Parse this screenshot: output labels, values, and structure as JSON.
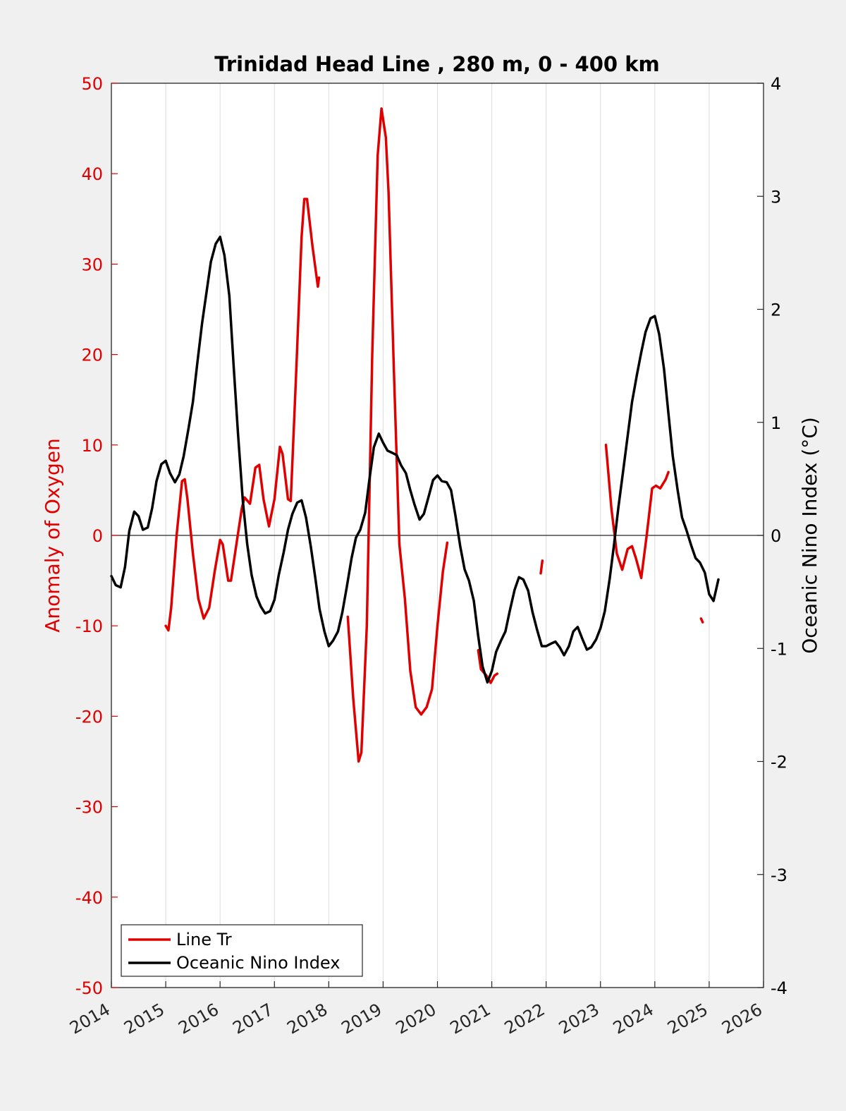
{
  "chart_data": {
    "type": "line",
    "title": "Trinidad Head Line , 280 m, 0 - 400 km",
    "xlabel": "",
    "ylabel_left": "Anomaly of Oxygen",
    "ylabel_right": "Oceanic Nino Index (°C)",
    "xlim": [
      2014,
      2026
    ],
    "ylim_left": [
      -50,
      50
    ],
    "ylim_right": [
      -4,
      4
    ],
    "x_ticks": [
      "2014",
      "2015",
      "2016",
      "2017",
      "2018",
      "2019",
      "2020",
      "2021",
      "2022",
      "2023",
      "2024",
      "2025",
      "2026"
    ],
    "y_ticks_left": [
      "50",
      "40",
      "30",
      "20",
      "10",
      "0",
      "-10",
      "-20",
      "-30",
      "-40",
      "-50"
    ],
    "y_ticks_right": [
      "4",
      "3",
      "2",
      "1",
      "0",
      "-1",
      "-2",
      "-3",
      "-4"
    ],
    "grid": "vertical",
    "legend_position": "bottom-left",
    "colors": {
      "oxygen": "#e00000",
      "oni": "#000000",
      "left_axis": "#e00000",
      "right_axis": "#000000"
    },
    "series": [
      {
        "name": "Line Tr",
        "axis": "left",
        "segments": [
          [
            [
              2015.0,
              -10.0
            ],
            [
              2015.05,
              -10.5
            ],
            [
              2015.1,
              -8
            ],
            [
              2015.2,
              0
            ],
            [
              2015.3,
              6
            ],
            [
              2015.35,
              6.2
            ],
            [
              2015.4,
              4
            ],
            [
              2015.5,
              -2
            ],
            [
              2015.6,
              -7
            ],
            [
              2015.7,
              -9.2
            ],
            [
              2015.8,
              -8
            ],
            [
              2015.9,
              -4
            ],
            [
              2016.0,
              -0.5
            ],
            [
              2016.05,
              -1
            ],
            [
              2016.15,
              -5
            ],
            [
              2016.2,
              -5
            ],
            [
              2016.3,
              -1
            ],
            [
              2016.4,
              3
            ],
            [
              2016.45,
              4.2
            ],
            [
              2016.55,
              3.5
            ],
            [
              2016.65,
              7.5
            ],
            [
              2016.72,
              7.8
            ],
            [
              2016.8,
              4
            ],
            [
              2016.9,
              1
            ],
            [
              2017.0,
              4
            ],
            [
              2017.1,
              9.8
            ],
            [
              2017.15,
              9
            ],
            [
              2017.25,
              4
            ],
            [
              2017.3,
              3.8
            ],
            [
              2017.4,
              18
            ],
            [
              2017.5,
              33
            ],
            [
              2017.55,
              37.2
            ],
            [
              2017.6,
              37.2
            ],
            [
              2017.7,
              32
            ],
            [
              2017.8,
              27.5
            ],
            [
              2017.82,
              28.5
            ]
          ],
          [
            [
              2018.35,
              -9
            ],
            [
              2018.45,
              -18
            ],
            [
              2018.55,
              -25
            ],
            [
              2018.6,
              -24
            ],
            [
              2018.7,
              -10
            ],
            [
              2018.8,
              20
            ],
            [
              2018.9,
              42
            ],
            [
              2018.97,
              47.2
            ],
            [
              2019.05,
              44
            ],
            [
              2019.1,
              38
            ],
            [
              2019.2,
              18
            ],
            [
              2019.3,
              -1
            ],
            [
              2019.4,
              -7
            ],
            [
              2019.5,
              -15
            ],
            [
              2019.6,
              -19
            ],
            [
              2019.7,
              -19.8
            ],
            [
              2019.8,
              -19
            ],
            [
              2019.9,
              -17
            ],
            [
              2020.0,
              -10
            ],
            [
              2020.1,
              -4
            ],
            [
              2020.18,
              -0.8
            ]
          ],
          [
            [
              2020.75,
              -12.7
            ],
            [
              2020.8,
              -14.8
            ],
            [
              2020.9,
              -15.5
            ],
            [
              2020.98,
              -16.3
            ],
            [
              2021.05,
              -15.5
            ],
            [
              2021.1,
              -15.3
            ]
          ],
          [
            [
              2021.9,
              -4.2
            ],
            [
              2021.93,
              -2.8
            ]
          ],
          [
            [
              2023.1,
              10
            ],
            [
              2023.2,
              3
            ],
            [
              2023.3,
              -2
            ],
            [
              2023.4,
              -3.8
            ],
            [
              2023.5,
              -1.5
            ],
            [
              2023.58,
              -1.2
            ],
            [
              2023.65,
              -2.5
            ],
            [
              2023.75,
              -4.7
            ],
            [
              2023.85,
              0
            ],
            [
              2023.95,
              5.2
            ],
            [
              2024.02,
              5.5
            ],
            [
              2024.1,
              5.2
            ],
            [
              2024.2,
              6.2
            ],
            [
              2024.25,
              7
            ]
          ],
          [
            [
              2024.85,
              -9.2
            ],
            [
              2024.88,
              -9.6
            ]
          ]
        ]
      },
      {
        "name": "Oceanic Nino Index",
        "axis": "right",
        "segments": [
          [
            [
              2014.0,
              -0.36
            ],
            [
              2014.08,
              -0.44
            ],
            [
              2014.17,
              -0.46
            ],
            [
              2014.25,
              -0.28
            ],
            [
              2014.33,
              0.04
            ],
            [
              2014.42,
              0.21
            ],
            [
              2014.5,
              0.17
            ],
            [
              2014.58,
              0.05
            ],
            [
              2014.67,
              0.07
            ],
            [
              2014.75,
              0.24
            ],
            [
              2014.83,
              0.48
            ],
            [
              2014.92,
              0.63
            ],
            [
              2015.0,
              0.66
            ],
            [
              2015.08,
              0.55
            ],
            [
              2015.17,
              0.47
            ],
            [
              2015.25,
              0.54
            ],
            [
              2015.33,
              0.7
            ],
            [
              2015.42,
              0.95
            ],
            [
              2015.5,
              1.18
            ],
            [
              2015.58,
              1.52
            ],
            [
              2015.67,
              1.88
            ],
            [
              2015.75,
              2.15
            ],
            [
              2015.83,
              2.42
            ],
            [
              2015.92,
              2.58
            ],
            [
              2016.0,
              2.64
            ],
            [
              2016.08,
              2.48
            ],
            [
              2016.17,
              2.12
            ],
            [
              2016.25,
              1.5
            ],
            [
              2016.33,
              0.9
            ],
            [
              2016.42,
              0.3
            ],
            [
              2016.5,
              -0.08
            ],
            [
              2016.58,
              -0.35
            ],
            [
              2016.67,
              -0.54
            ],
            [
              2016.75,
              -0.63
            ],
            [
              2016.83,
              -0.69
            ],
            [
              2016.92,
              -0.67
            ],
            [
              2017.0,
              -0.57
            ],
            [
              2017.08,
              -0.35
            ],
            [
              2017.17,
              -0.15
            ],
            [
              2017.25,
              0.05
            ],
            [
              2017.33,
              0.19
            ],
            [
              2017.42,
              0.29
            ],
            [
              2017.5,
              0.31
            ],
            [
              2017.58,
              0.16
            ],
            [
              2017.67,
              -0.1
            ],
            [
              2017.75,
              -0.37
            ],
            [
              2017.83,
              -0.65
            ],
            [
              2017.92,
              -0.85
            ],
            [
              2018.0,
              -0.98
            ],
            [
              2018.08,
              -0.93
            ],
            [
              2018.17,
              -0.85
            ],
            [
              2018.25,
              -0.68
            ],
            [
              2018.33,
              -0.46
            ],
            [
              2018.42,
              -0.2
            ],
            [
              2018.5,
              -0.02
            ],
            [
              2018.58,
              0.05
            ],
            [
              2018.67,
              0.2
            ],
            [
              2018.75,
              0.5
            ],
            [
              2018.83,
              0.78
            ],
            [
              2018.92,
              0.9
            ],
            [
              2019.0,
              0.82
            ],
            [
              2019.08,
              0.75
            ],
            [
              2019.17,
              0.73
            ],
            [
              2019.25,
              0.71
            ],
            [
              2019.33,
              0.62
            ],
            [
              2019.42,
              0.55
            ],
            [
              2019.5,
              0.4
            ],
            [
              2019.58,
              0.27
            ],
            [
              2019.67,
              0.14
            ],
            [
              2019.75,
              0.19
            ],
            [
              2019.83,
              0.33
            ],
            [
              2019.92,
              0.49
            ],
            [
              2020.0,
              0.53
            ],
            [
              2020.08,
              0.48
            ],
            [
              2020.17,
              0.47
            ],
            [
              2020.25,
              0.4
            ],
            [
              2020.33,
              0.18
            ],
            [
              2020.42,
              -0.1
            ],
            [
              2020.5,
              -0.3
            ],
            [
              2020.58,
              -0.4
            ],
            [
              2020.67,
              -0.58
            ],
            [
              2020.75,
              -0.89
            ],
            [
              2020.83,
              -1.16
            ],
            [
              2020.92,
              -1.3
            ],
            [
              2021.0,
              -1.2
            ],
            [
              2021.08,
              -1.03
            ],
            [
              2021.17,
              -0.93
            ],
            [
              2021.25,
              -0.85
            ],
            [
              2021.33,
              -0.67
            ],
            [
              2021.42,
              -0.48
            ],
            [
              2021.5,
              -0.37
            ],
            [
              2021.58,
              -0.39
            ],
            [
              2021.67,
              -0.49
            ],
            [
              2021.75,
              -0.68
            ],
            [
              2021.83,
              -0.83
            ],
            [
              2021.92,
              -0.98
            ],
            [
              2022.0,
              -0.98
            ],
            [
              2022.08,
              -0.96
            ],
            [
              2022.17,
              -0.94
            ],
            [
              2022.25,
              -0.99
            ],
            [
              2022.33,
              -1.06
            ],
            [
              2022.42,
              -0.98
            ],
            [
              2022.5,
              -0.85
            ],
            [
              2022.58,
              -0.81
            ],
            [
              2022.67,
              -0.92
            ],
            [
              2022.75,
              -1.01
            ],
            [
              2022.83,
              -0.99
            ],
            [
              2022.92,
              -0.92
            ],
            [
              2023.0,
              -0.82
            ],
            [
              2023.08,
              -0.67
            ],
            [
              2023.17,
              -0.38
            ],
            [
              2023.25,
              -0.08
            ],
            [
              2023.33,
              0.25
            ],
            [
              2023.42,
              0.58
            ],
            [
              2023.5,
              0.88
            ],
            [
              2023.58,
              1.18
            ],
            [
              2023.67,
              1.42
            ],
            [
              2023.75,
              1.62
            ],
            [
              2023.83,
              1.8
            ],
            [
              2023.92,
              1.92
            ],
            [
              2024.0,
              1.94
            ],
            [
              2024.08,
              1.78
            ],
            [
              2024.17,
              1.47
            ],
            [
              2024.25,
              1.08
            ],
            [
              2024.33,
              0.7
            ],
            [
              2024.42,
              0.4
            ],
            [
              2024.5,
              0.16
            ],
            [
              2024.58,
              0.05
            ],
            [
              2024.67,
              -0.09
            ],
            [
              2024.75,
              -0.2
            ],
            [
              2024.83,
              -0.24
            ],
            [
              2024.92,
              -0.33
            ],
            [
              2025.0,
              -0.52
            ],
            [
              2025.08,
              -0.58
            ],
            [
              2025.17,
              -0.39
            ]
          ]
        ]
      }
    ]
  }
}
